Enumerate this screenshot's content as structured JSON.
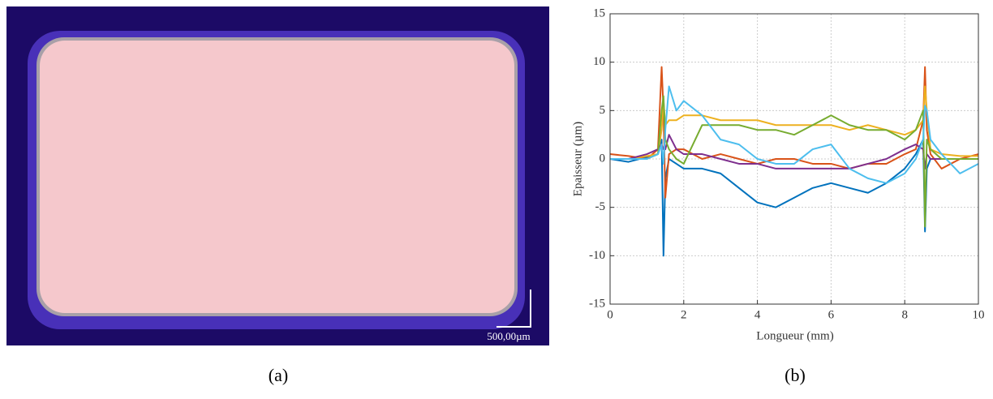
{
  "figure": {
    "scale_bar": "500,00µm",
    "captions": [
      "(a)",
      "(b)"
    ]
  },
  "chart_data": {
    "type": "line",
    "x_label": "Longueur (mm)",
    "y_label": "Epaisseur (µm)",
    "x": [
      0,
      0.5,
      1,
      1.3,
      1.4,
      1.45,
      1.5,
      1.6,
      1.8,
      2,
      2.5,
      3,
      3.5,
      4,
      4.5,
      5,
      5.5,
      6,
      6.5,
      7,
      7.5,
      8,
      8.3,
      8.5,
      8.55,
      8.6,
      8.7,
      9,
      9.5,
      10
    ],
    "series": [
      {
        "color": "#0072BD",
        "values": [
          0,
          -0.3,
          0.2,
          0.5,
          2,
          -10,
          -2,
          0,
          -0.5,
          -1,
          -1,
          -1.5,
          -3,
          -4.5,
          -5,
          -4,
          -3,
          -2.5,
          -3,
          -3.5,
          -2.5,
          -1,
          0.5,
          2,
          -7.5,
          -1,
          0,
          0,
          0,
          0
        ]
      },
      {
        "color": "#D95319",
        "values": [
          0.5,
          0.3,
          0,
          1,
          9.5,
          5,
          -4,
          0.5,
          1,
          1,
          0,
          0.5,
          0,
          -0.5,
          0,
          0,
          -0.5,
          -0.5,
          -1,
          -0.5,
          -0.5,
          0.5,
          1,
          4,
          9.5,
          3,
          0.5,
          -1,
          0,
          0.5
        ]
      },
      {
        "color": "#EDB120",
        "values": [
          0,
          0,
          0.3,
          0.5,
          3,
          6,
          3.5,
          4,
          4,
          4.5,
          4.5,
          4,
          4,
          4,
          3.5,
          3.5,
          3.5,
          3.5,
          3,
          3.5,
          3,
          2.5,
          3,
          4,
          7.5,
          5,
          1,
          0.5,
          0.3,
          0.3
        ]
      },
      {
        "color": "#7E2F8E",
        "values": [
          0,
          0,
          0.5,
          1,
          1.5,
          1,
          1,
          2.5,
          1,
          0.5,
          0.5,
          0,
          -0.5,
          -0.5,
          -1,
          -1,
          -1,
          -1,
          -1,
          -0.5,
          0,
          1,
          1.5,
          1,
          -1,
          0.5,
          0,
          0,
          0,
          0
        ]
      },
      {
        "color": "#77AC30",
        "values": [
          0,
          0,
          0,
          0.5,
          5,
          6.5,
          2,
          1,
          0,
          -0.5,
          3.5,
          3.5,
          3.5,
          3,
          3,
          2.5,
          3.5,
          4.5,
          3.5,
          3,
          3,
          2,
          3,
          5,
          -7,
          2,
          1,
          0,
          0,
          0
        ]
      },
      {
        "color": "#4DBEEE",
        "values": [
          0,
          0,
          0,
          0.5,
          1.5,
          -0.5,
          3,
          7.5,
          5,
          6,
          4.5,
          2,
          1.5,
          0,
          -0.5,
          -0.5,
          1,
          1.5,
          -1,
          -2,
          -2.5,
          -1.5,
          0,
          2,
          5.5,
          5,
          2,
          0.5,
          -1.5,
          -0.5
        ]
      }
    ],
    "xlim": [
      0,
      10
    ],
    "xticks": [
      0,
      2,
      4,
      6,
      8,
      10
    ],
    "ylim": [
      -15,
      15
    ],
    "yticks": [
      -15,
      -10,
      -5,
      0,
      5,
      10,
      15
    ],
    "grid": true
  }
}
